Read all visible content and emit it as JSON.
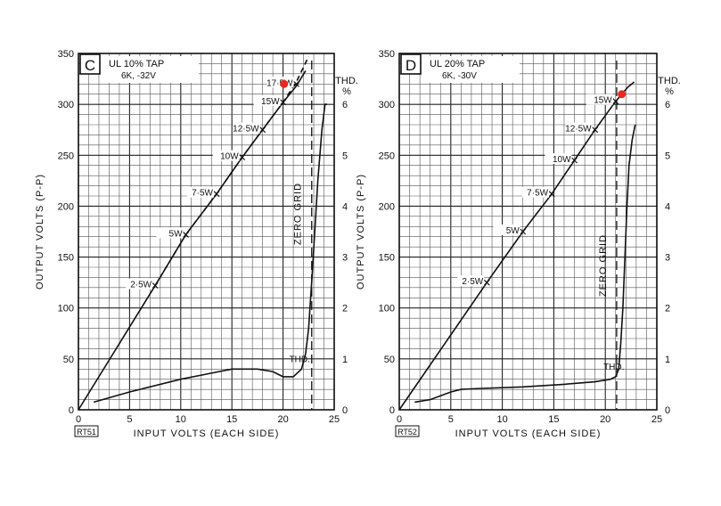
{
  "chart_data": [
    {
      "type": "line",
      "panel_letter": "C",
      "title_lines": [
        "UL 10% TAP",
        "6K, -32V"
      ],
      "xlabel": "INPUT VOLTS (EACH SIDE)",
      "ylabel": "OUTPUT VOLTS (P-P)",
      "y2label": "THD.",
      "y2unit": "%",
      "figure_id": "RT51",
      "xlim": [
        0,
        25
      ],
      "ylim": [
        0,
        350
      ],
      "y2lim": [
        0,
        7
      ],
      "xticks": [
        "0",
        "5",
        "10",
        "15",
        "20",
        "25"
      ],
      "yticks": [
        "0",
        "50",
        "100",
        "150",
        "200",
        "250",
        "300",
        "350"
      ],
      "y2ticks": [
        "0",
        "1",
        "2",
        "3",
        "4",
        "5",
        "6"
      ],
      "grid": true,
      "series": [
        {
          "style": "solid",
          "axis": "left",
          "x": [
            0,
            7.5,
            10.5,
            13.5,
            16,
            18,
            20,
            21.3,
            22.2
          ],
          "y": [
            0,
            122,
            172,
            212,
            248,
            275,
            302,
            318,
            333
          ]
        },
        {
          "style": "dashed",
          "axis": "left",
          "x": [
            7.5,
            10.5,
            13.5,
            16,
            18,
            20,
            21.3,
            22.5
          ],
          "y": [
            122,
            172,
            212,
            248,
            275,
            302,
            322,
            347
          ]
        },
        {
          "name": "THD.",
          "style": "solid",
          "axis": "right",
          "x": [
            1.5,
            5,
            10,
            12.5,
            15,
            17.5,
            19,
            20,
            21,
            21.8,
            22.2,
            22.5,
            22.8,
            23.1,
            23.4,
            23.8,
            24.1,
            24.3
          ],
          "y": [
            0.15,
            0.35,
            0.6,
            0.7,
            0.8,
            0.8,
            0.75,
            0.65,
            0.65,
            0.8,
            1.1,
            1.6,
            2.5,
            3.5,
            4.5,
            5.5,
            6.0,
            6.0
          ]
        }
      ],
      "power_markers": [
        {
          "label": "2·5W",
          "x": 7.5,
          "y": 122
        },
        {
          "label": "5W",
          "x": 10.5,
          "y": 172
        },
        {
          "label": "7·5W",
          "x": 13.5,
          "y": 212
        },
        {
          "label": "10W",
          "x": 16,
          "y": 248
        },
        {
          "label": "12·5W",
          "x": 18,
          "y": 275
        },
        {
          "label": "15W",
          "x": 20,
          "y": 302
        },
        {
          "label": "17·5W",
          "x": 21.3,
          "y": 320
        }
      ],
      "highlight_point": {
        "x": 20.1,
        "y": 320,
        "color": "#e8281f"
      },
      "zero_grid": {
        "label": "ZERO GRID",
        "x": 22.8
      }
    },
    {
      "type": "line",
      "panel_letter": "D",
      "title_lines": [
        "UL 20% TAP",
        "6K, -30V"
      ],
      "xlabel": "INPUT VOLTS (EACH SIDE)",
      "ylabel": "OUTPUT VOLTS (P-P)",
      "y2label": "THD.",
      "y2unit": "%",
      "figure_id": "RT52",
      "xlim": [
        0,
        25
      ],
      "ylim": [
        0,
        350
      ],
      "y2lim": [
        0,
        7
      ],
      "xticks": [
        "0",
        "5",
        "10",
        "15",
        "20",
        "25"
      ],
      "yticks": [
        "0",
        "50",
        "100",
        "150",
        "200",
        "250",
        "300",
        "350"
      ],
      "y2ticks": [
        "0",
        "1",
        "2",
        "3",
        "4",
        "5",
        "6"
      ],
      "grid": true,
      "series": [
        {
          "style": "solid",
          "axis": "left",
          "x": [
            0,
            8.5,
            12,
            14.8,
            17,
            19,
            21,
            21.6,
            22.2,
            22.8
          ],
          "y": [
            0,
            125,
            175,
            212,
            245,
            275,
            303,
            310,
            317,
            322
          ]
        },
        {
          "name": "THD.",
          "style": "solid",
          "axis": "right",
          "x": [
            1.5,
            3,
            5,
            6,
            8,
            12,
            16,
            19,
            20.5,
            21,
            21.3,
            21.5,
            21.7,
            21.9,
            22.1,
            22.3,
            22.6,
            22.9
          ],
          "y": [
            0.15,
            0.2,
            0.35,
            0.4,
            0.42,
            0.45,
            0.5,
            0.55,
            0.6,
            0.65,
            0.8,
            1.3,
            2.0,
            3.0,
            4.0,
            4.8,
            5.3,
            5.6
          ]
        }
      ],
      "power_markers": [
        {
          "label": "2·5W",
          "x": 8.5,
          "y": 125
        },
        {
          "label": "5W",
          "x": 12,
          "y": 175
        },
        {
          "label": "7·5W",
          "x": 14.8,
          "y": 212
        },
        {
          "label": "10W",
          "x": 17,
          "y": 245
        },
        {
          "label": "12·5W",
          "x": 19,
          "y": 275
        },
        {
          "label": "15W",
          "x": 21,
          "y": 303
        }
      ],
      "highlight_point": {
        "x": 21.6,
        "y": 310,
        "color": "#e8281f"
      },
      "zero_grid": {
        "label": "ZERO GRID",
        "x": 21.1
      }
    }
  ]
}
